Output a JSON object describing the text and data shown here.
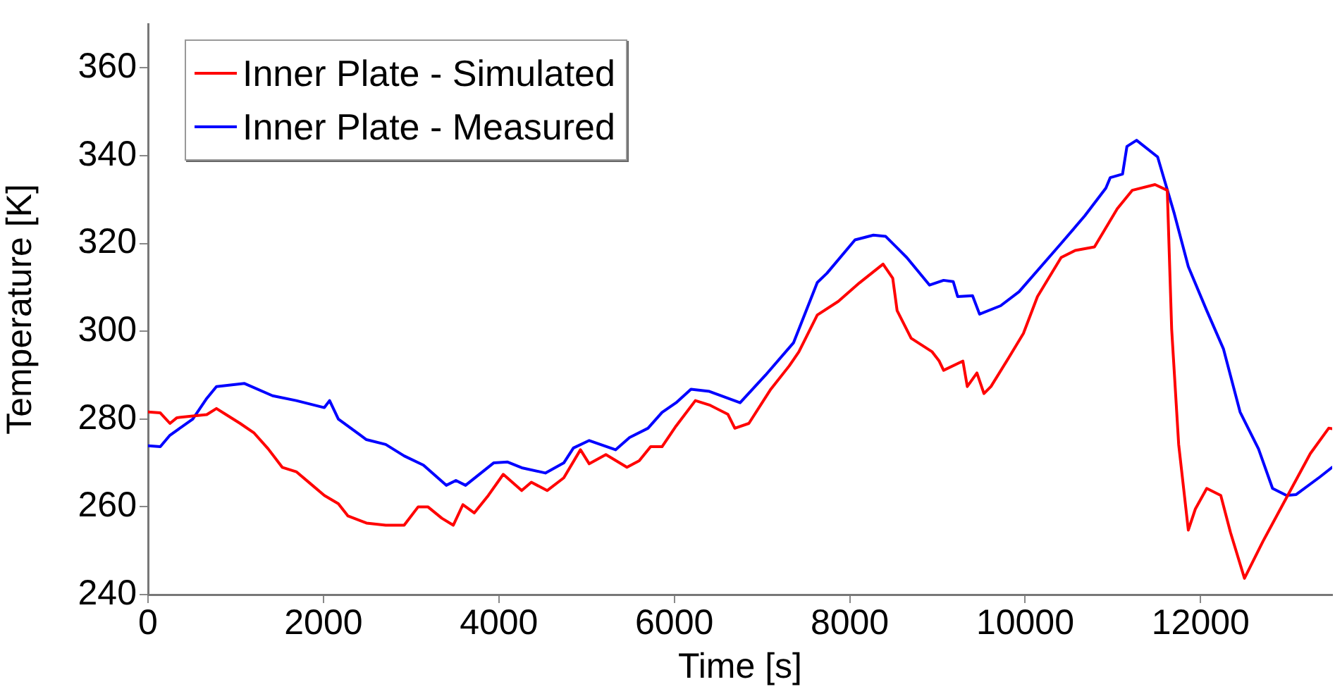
{
  "chart_data": {
    "type": "line",
    "xlabel": "Time [s]",
    "ylabel": "Temperature [K]",
    "xlim": [
      0,
      13500
    ],
    "xticks": [
      0,
      2000,
      4000,
      6000,
      8000,
      10000,
      12000
    ],
    "ylim": [
      240,
      370
    ],
    "yticks": [
      240,
      260,
      280,
      300,
      320,
      340,
      360
    ],
    "grid": false,
    "legend": "top left",
    "marker": "none",
    "line_style": "solid",
    "series": [
      {
        "name": "Inner Plate - Simulated",
        "color": "#ff0000",
        "x": [
          0,
          140,
          250,
          330,
          510,
          670,
          780,
          890,
          1050,
          1210,
          1370,
          1530,
          1690,
          1850,
          2010,
          2170,
          2280,
          2490,
          2710,
          2920,
          3080,
          3190,
          3350,
          3480,
          3590,
          3720,
          3880,
          4050,
          4260,
          4370,
          4550,
          4740,
          4930,
          5030,
          5220,
          5460,
          5600,
          5730,
          5860,
          6020,
          6240,
          6400,
          6610,
          6690,
          6850,
          7100,
          7310,
          7420,
          7630,
          7870,
          8110,
          8380,
          8490,
          8540,
          8700,
          8940,
          9020,
          9070,
          9290,
          9340,
          9450,
          9530,
          9610,
          9820,
          9980,
          10140,
          10410,
          10570,
          10790,
          11050,
          11220,
          11480,
          11620,
          11670,
          11750,
          11860,
          11940,
          12070,
          12230,
          12340,
          12500,
          12710,
          12980,
          13250,
          13460,
          13500
        ],
        "values": [
          281.6,
          281.4,
          279,
          280.3,
          280.7,
          281,
          282.4,
          281,
          279,
          276.8,
          273.2,
          269,
          268,
          265.3,
          262.6,
          260.7,
          257.9,
          256.3,
          255.8,
          255.8,
          260,
          260,
          257.4,
          255.8,
          260.5,
          258.6,
          262.6,
          267.4,
          263.7,
          265.6,
          263.7,
          266.6,
          273,
          269.8,
          271.9,
          269,
          270.5,
          273.7,
          273.7,
          278.4,
          284.2,
          283.2,
          281.1,
          277.9,
          279,
          286.8,
          292.1,
          295.3,
          303.7,
          306.8,
          311,
          315.3,
          312.1,
          304.7,
          298.4,
          295.3,
          293.2,
          291.1,
          293.2,
          287.4,
          290.5,
          285.8,
          287.4,
          294.2,
          299.5,
          307.9,
          316.8,
          318.4,
          319.2,
          327.9,
          332.1,
          333.4,
          332.1,
          300.5,
          274.2,
          254.7,
          259.5,
          264.2,
          262.6,
          254.2,
          243.7,
          252.1,
          262.1,
          272.1,
          277.9,
          277.8
        ]
      },
      {
        "name": "Inner Plate - Measured",
        "color": "#0000ff",
        "x": [
          0,
          140,
          250,
          510,
          670,
          780,
          1100,
          1420,
          1690,
          2010,
          2070,
          2170,
          2490,
          2710,
          2920,
          3140,
          3400,
          3510,
          3620,
          3940,
          4100,
          4260,
          4530,
          4740,
          4850,
          5030,
          5330,
          5490,
          5700,
          5860,
          6020,
          6190,
          6400,
          6750,
          7040,
          7360,
          7630,
          7740,
          8060,
          8270,
          8410,
          8650,
          8910,
          9070,
          9180,
          9230,
          9400,
          9480,
          9720,
          9930,
          10410,
          10680,
          10920,
          10970,
          11110,
          11160,
          11270,
          11510,
          11700,
          11860,
          12070,
          12260,
          12450,
          12660,
          12820,
          12980,
          13090,
          13360,
          13500
        ],
        "values": [
          273.9,
          273.7,
          276.3,
          280,
          284.7,
          287.4,
          288.1,
          285.3,
          284.2,
          282.6,
          284.2,
          280,
          275.3,
          274.2,
          271.6,
          269.5,
          264.9,
          266,
          264.9,
          270,
          270.2,
          268.9,
          267.7,
          270,
          273.4,
          275.1,
          273,
          275.8,
          277.9,
          281.5,
          283.7,
          286.8,
          286.3,
          283.7,
          290,
          297.4,
          311.1,
          313.2,
          320.8,
          321.9,
          321.6,
          316.8,
          310.5,
          311.6,
          311.3,
          307.9,
          308.1,
          303.9,
          305.8,
          309,
          320,
          326.3,
          332.6,
          335,
          335.8,
          342.1,
          343.5,
          339.7,
          326.8,
          314.7,
          304.7,
          296,
          281.6,
          273.2,
          264.2,
          262.6,
          262.8,
          266.8,
          269
        ]
      }
    ]
  }
}
